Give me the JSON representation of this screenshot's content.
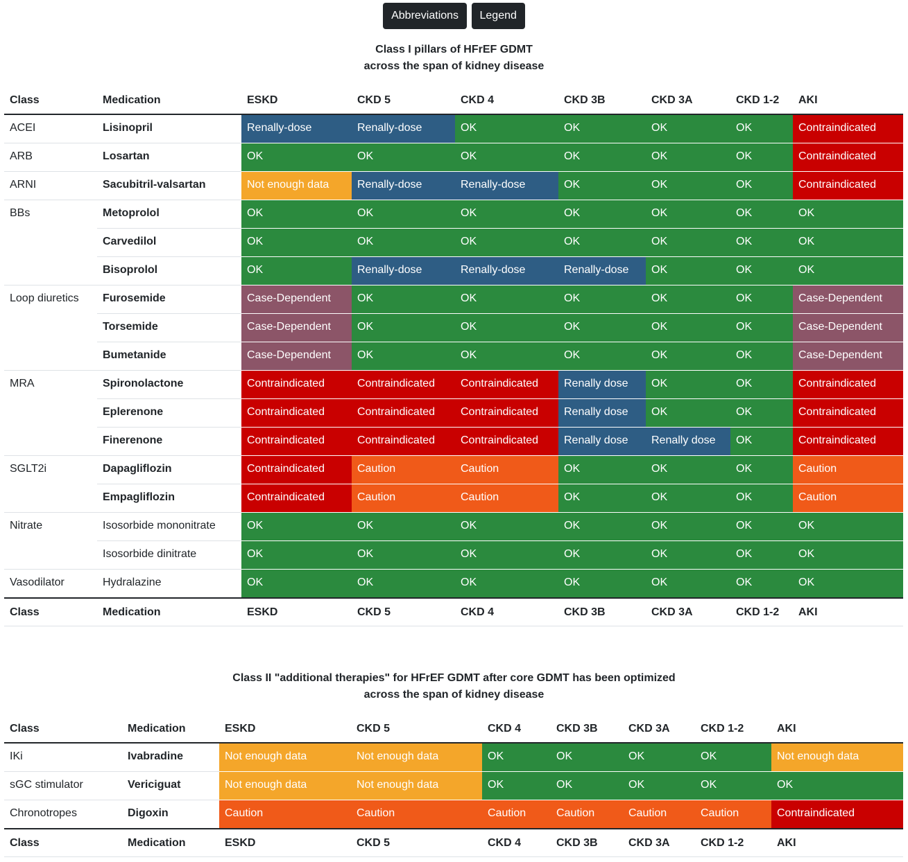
{
  "buttons": {
    "abbreviations": "Abbreviations",
    "legend": "Legend"
  },
  "colors": {
    "OK": "#2b8a3e",
    "Renally-dose": "#2e5d84",
    "Renally dose": "#2e5d84",
    "Not enough data": "#f4a62a",
    "Contraindicated": "#c90000",
    "Caution": "#f05a19",
    "Case-Dependent": "#8c5568"
  },
  "table1": {
    "title_line1": "Class I pillars of HFrEF GDMT",
    "title_line2": "across the span of kidney disease",
    "headers": [
      "Class",
      "Medication",
      "ESKD",
      "CKD 5",
      "CKD 4",
      "CKD 3B",
      "CKD 3A",
      "CKD 1-2",
      "AKI"
    ],
    "rows": [
      {
        "cls": "ACEI",
        "med": "Lisinopril",
        "bold": true,
        "vals": [
          "Renally-dose",
          "Renally-dose",
          "OK",
          "OK",
          "OK",
          "OK",
          "Contraindicated"
        ]
      },
      {
        "cls": "ARB",
        "med": "Losartan",
        "bold": true,
        "vals": [
          "OK",
          "OK",
          "OK",
          "OK",
          "OK",
          "OK",
          "Contraindicated"
        ]
      },
      {
        "cls": "ARNI",
        "med": "Sacubitril-valsartan",
        "bold": true,
        "vals": [
          "Not enough data",
          "Renally-dose",
          "Renally-dose",
          "OK",
          "OK",
          "OK",
          "Contraindicated"
        ]
      },
      {
        "cls": "BBs",
        "med": "Metoprolol",
        "bold": true,
        "vals": [
          "OK",
          "OK",
          "OK",
          "OK",
          "OK",
          "OK",
          "OK"
        ]
      },
      {
        "cls": "",
        "med": "Carvedilol",
        "bold": true,
        "vals": [
          "OK",
          "OK",
          "OK",
          "OK",
          "OK",
          "OK",
          "OK"
        ]
      },
      {
        "cls": "",
        "med": "Bisoprolol",
        "bold": true,
        "vals": [
          "OK",
          "Renally-dose",
          "Renally-dose",
          "Renally-dose",
          "OK",
          "OK",
          "OK"
        ]
      },
      {
        "cls": "Loop diuretics",
        "med": "Furosemide",
        "bold": true,
        "vals": [
          "Case-Dependent",
          "OK",
          "OK",
          "OK",
          "OK",
          "OK",
          "Case-Dependent"
        ]
      },
      {
        "cls": "",
        "med": "Torsemide",
        "bold": true,
        "vals": [
          "Case-Dependent",
          "OK",
          "OK",
          "OK",
          "OK",
          "OK",
          "Case-Dependent"
        ]
      },
      {
        "cls": "",
        "med": "Bumetanide",
        "bold": true,
        "vals": [
          "Case-Dependent",
          "OK",
          "OK",
          "OK",
          "OK",
          "OK",
          "Case-Dependent"
        ]
      },
      {
        "cls": "MRA",
        "med": "Spironolactone",
        "bold": true,
        "vals": [
          "Contraindicated",
          "Contraindicated",
          "Contraindicated",
          "Renally dose",
          "OK",
          "OK",
          "Contraindicated"
        ]
      },
      {
        "cls": "",
        "med": "Eplerenone",
        "bold": true,
        "vals": [
          "Contraindicated",
          "Contraindicated",
          "Contraindicated",
          "Renally dose",
          "OK",
          "OK",
          "Contraindicated"
        ]
      },
      {
        "cls": "",
        "med": "Finerenone",
        "bold": true,
        "vals": [
          "Contraindicated",
          "Contraindicated",
          "Contraindicated",
          "Renally dose",
          "Renally dose",
          "OK",
          "Contraindicated"
        ]
      },
      {
        "cls": "SGLT2i",
        "med": "Dapagliflozin",
        "bold": true,
        "vals": [
          "Contraindicated",
          "Caution",
          "Caution",
          "OK",
          "OK",
          "OK",
          "Caution"
        ]
      },
      {
        "cls": "",
        "med": "Empagliflozin",
        "bold": true,
        "vals": [
          "Contraindicated",
          "Caution",
          "Caution",
          "OK",
          "OK",
          "OK",
          "Caution"
        ]
      },
      {
        "cls": "Nitrate",
        "med": "Isosorbide mononitrate",
        "bold": false,
        "vals": [
          "OK",
          "OK",
          "OK",
          "OK",
          "OK",
          "OK",
          "OK"
        ]
      },
      {
        "cls": "",
        "med": "Isosorbide dinitrate",
        "bold": false,
        "vals": [
          "OK",
          "OK",
          "OK",
          "OK",
          "OK",
          "OK",
          "OK"
        ]
      },
      {
        "cls": "Vasodilator",
        "med": "Hydralazine",
        "bold": false,
        "vals": [
          "OK",
          "OK",
          "OK",
          "OK",
          "OK",
          "OK",
          "OK"
        ]
      }
    ]
  },
  "table2": {
    "title_line1": "Class II \"additional therapies\" for HFrEF GDMT after core GDMT has been optimized",
    "title_line2": "across the span of kidney disease",
    "headers": [
      "Class",
      "Medication",
      "ESKD",
      "CKD 5",
      "CKD 4",
      "CKD 3B",
      "CKD 3A",
      "CKD 1-2",
      "AKI"
    ],
    "rows": [
      {
        "cls": "IKi",
        "med": "Ivabradine",
        "bold": true,
        "vals": [
          "Not enough data",
          "Not enough data",
          "OK",
          "OK",
          "OK",
          "OK",
          "Not enough data"
        ]
      },
      {
        "cls": "sGC stimulator",
        "med": "Vericiguat",
        "bold": true,
        "vals": [
          "Not enough data",
          "Not enough data",
          "OK",
          "OK",
          "OK",
          "OK",
          "OK"
        ]
      },
      {
        "cls": "Chronotropes",
        "med": "Digoxin",
        "bold": true,
        "vals": [
          "Caution",
          "Caution",
          "Caution",
          "Caution",
          "Caution",
          "Caution",
          "Contraindicated"
        ]
      }
    ]
  }
}
